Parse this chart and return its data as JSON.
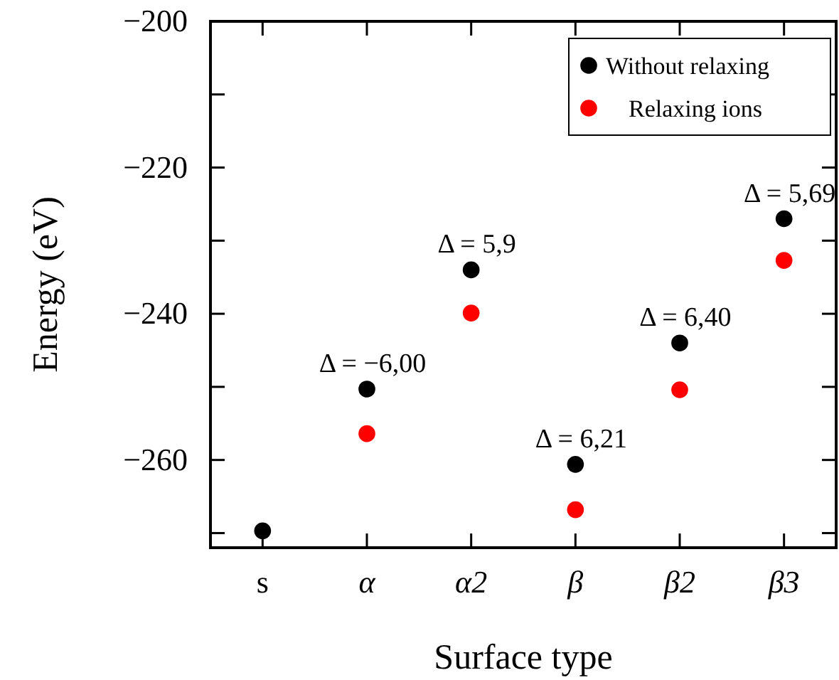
{
  "chart_data": {
    "type": "scatter",
    "xlabel": "Surface type",
    "ylabel": "Energy (eV)",
    "categories": [
      "s",
      "α",
      "α2",
      "β",
      "β2",
      "β3"
    ],
    "series": [
      {
        "name": "Without relaxing",
        "color": "#000000",
        "values": [
          -269.7,
          -250.3,
          -234.0,
          -260.6,
          -244.0,
          -227.0
        ]
      },
      {
        "name": "Relaxing ions",
        "color": "#ff0000",
        "values": [
          null,
          -256.4,
          -239.9,
          -266.8,
          -250.4,
          -232.7
        ]
      }
    ],
    "ylim": [
      -272,
      -200
    ],
    "yticks": [
      {
        "value": -270,
        "label": null
      },
      -260,
      {
        "value": -250,
        "label": null
      },
      -240,
      {
        "value": -230,
        "label": null
      },
      -220,
      {
        "value": -210,
        "label": null
      },
      -200
    ],
    "marker": "circle",
    "legend": "top right",
    "grid": false,
    "annotations": [
      {
        "text": "Δ = −6,00",
        "x": "α",
        "y": -250.3
      },
      {
        "text": "Δ = 5,9",
        "x": "α2",
        "y": -234.0
      },
      {
        "text": "Δ = 6,21",
        "x": "β",
        "y": -260.6
      },
      {
        "text": "Δ = 6,40",
        "x": "β2",
        "y": -244.0
      },
      {
        "text": "Δ = 5,69",
        "x": "β3",
        "y": -227.0
      }
    ]
  }
}
